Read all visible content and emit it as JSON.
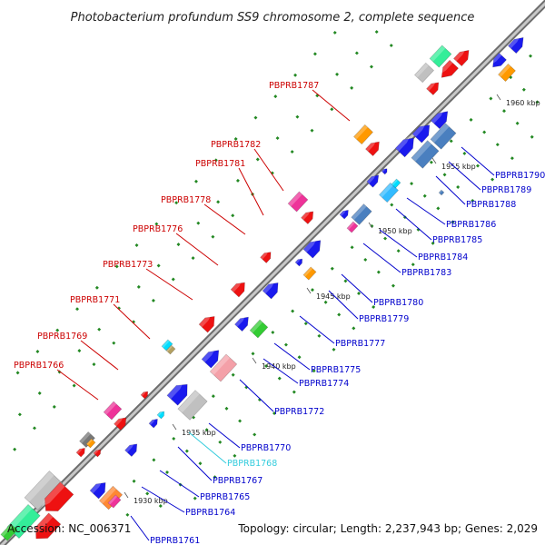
{
  "title": "Photobacterium profundum SS9 chromosome 2, complete sequence",
  "footer": {
    "accession": "Accession: NC_006371",
    "topology": "Topology: circular; Length: 2,237,943 bp; Genes: 2,029"
  },
  "colors": {
    "axis": "#8a8a8a",
    "left_label": "#cc0000",
    "right_label": "#0000cc",
    "highlight_label": "#33ccdd",
    "dot": "#228822"
  },
  "ticks": [
    {
      "label": "1930 kbp"
    },
    {
      "label": "1935 kbp"
    },
    {
      "label": "1940 kbp"
    },
    {
      "label": "1945 kbp"
    },
    {
      "label": "1950 kbp"
    },
    {
      "label": "1955 kbp"
    },
    {
      "label": "1960 kbp"
    }
  ],
  "left_labels": [
    {
      "id": "PBPRB1787"
    },
    {
      "id": "PBPRB1782"
    },
    {
      "id": "PBPRB1781"
    },
    {
      "id": "PBPRB1778"
    },
    {
      "id": "PBPRB1776"
    },
    {
      "id": "PBPRB1773"
    },
    {
      "id": "PBPRB1771"
    },
    {
      "id": "PBPRB1769"
    },
    {
      "id": "PBPRB1766"
    }
  ],
  "right_labels": [
    {
      "id": "PBPRB1790"
    },
    {
      "id": "PBPRB1789"
    },
    {
      "id": "PBPRB1788"
    },
    {
      "id": "PBPRB1786"
    },
    {
      "id": "PBPRB1785"
    },
    {
      "id": "PBPRB1784"
    },
    {
      "id": "PBPRB1783"
    },
    {
      "id": "PBPRB1780"
    },
    {
      "id": "PBPRB1779"
    },
    {
      "id": "PBPRB1777"
    },
    {
      "id": "PBPRB1775"
    },
    {
      "id": "PBPRB1774"
    },
    {
      "id": "PBPRB1772"
    },
    {
      "id": "PBPRB1770"
    },
    {
      "id": "PBPRB1768",
      "highlight": true
    },
    {
      "id": "PBPRB1767"
    },
    {
      "id": "PBPRB1765"
    },
    {
      "id": "PBPRB1764"
    },
    {
      "id": "PBPRB1761"
    }
  ]
}
